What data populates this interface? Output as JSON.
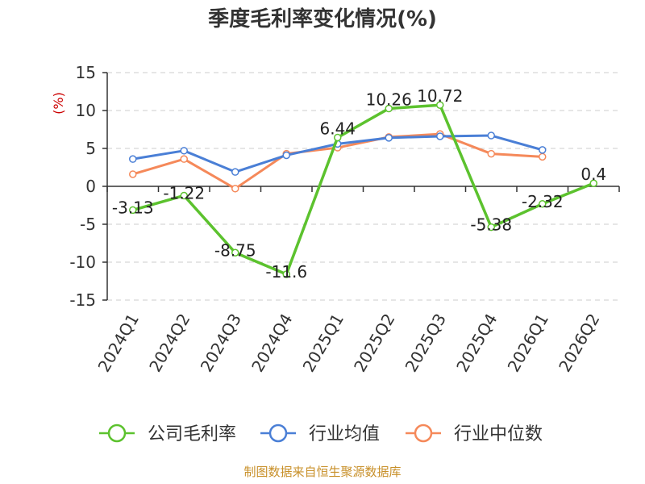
{
  "chart_data": {
    "type": "line",
    "title": "季度毛利率变化情况(%)",
    "unit_label": "(%)",
    "categories": [
      "2024Q1",
      "2024Q2",
      "2024Q3",
      "2024Q4",
      "2025Q1",
      "2025Q2",
      "2025Q3",
      "2025Q4",
      "2026Q1",
      "2026Q2"
    ],
    "ylim": [
      -15,
      15
    ],
    "yticks": [
      15,
      10,
      5,
      0,
      -5,
      -10,
      -15
    ],
    "grid": true,
    "legend_position": "bottom",
    "series": [
      {
        "name": "公司毛利率",
        "color": "#5cc22e",
        "values": [
          -3.13,
          -1.22,
          -8.75,
          -11.6,
          6.44,
          10.26,
          10.72,
          -5.38,
          -2.32,
          0.4
        ],
        "labels": [
          "-3.13",
          "-1.22",
          "-8.75",
          "-11.6",
          "6.44",
          "10.26",
          "10.72",
          "-5.38",
          "-2.32",
          "0.4"
        ]
      },
      {
        "name": "行业均值",
        "color": "#4a7fd6",
        "values": [
          3.6,
          4.7,
          1.9,
          4.1,
          5.6,
          6.4,
          6.6,
          6.7,
          4.8,
          null
        ]
      },
      {
        "name": "行业中位数",
        "color": "#f5895a",
        "values": [
          1.6,
          3.6,
          -0.3,
          4.3,
          5.1,
          6.5,
          6.9,
          4.3,
          3.9,
          null
        ]
      }
    ]
  },
  "footer": {
    "source": "制图数据来自恒生聚源数据库"
  }
}
